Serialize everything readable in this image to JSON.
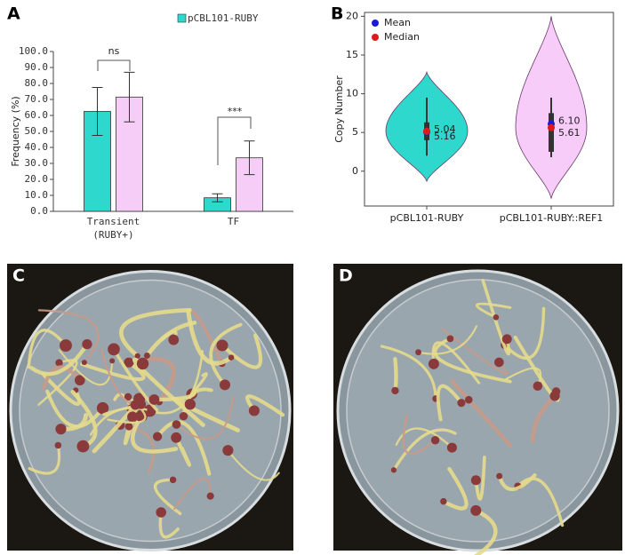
{
  "panel_labels": [
    "A",
    "B",
    "C",
    "D"
  ],
  "chart_data": [
    {
      "type": "bar",
      "ylabel": "Frequency (%)",
      "categories": [
        [
          "Transient",
          "(RUBY+)"
        ],
        [
          "TF"
        ]
      ],
      "series": [
        {
          "name": "pCBL101-RUBY",
          "color": "#2ed8cc",
          "values": [
            62.5,
            8.5
          ],
          "errors": [
            15,
            2.5
          ]
        },
        {
          "color": "#f6cdf6",
          "values": [
            71.5,
            33.5
          ],
          "errors": [
            15.5,
            10.5
          ]
        }
      ],
      "annotations": [
        "ns",
        "***"
      ],
      "ylim": [
        0,
        100
      ],
      "yticks": [
        {
          "value": 0,
          "label": "0.0"
        },
        {
          "value": 10,
          "label": "10.0"
        },
        {
          "value": 20,
          "label": "20.0"
        },
        {
          "value": 30,
          "label": "30.0"
        },
        {
          "value": 40,
          "label": "40.0"
        },
        {
          "value": 50,
          "label": "50.0"
        },
        {
          "value": 60,
          "label": "60.0"
        },
        {
          "value": 70,
          "label": "70.0"
        },
        {
          "value": 80,
          "label": "80.0"
        },
        {
          "value": 90,
          "label": "90.0"
        },
        {
          "value": 100,
          "label": "100.0"
        }
      ],
      "legend": "upper right"
    },
    {
      "type": "violin",
      "ylabel": "Copy Number",
      "categories": [
        "pCBL101-RUBY",
        "pCBL101-RUBY::REF1"
      ],
      "series": [
        {
          "color": "#2ed8cc",
          "range": [
            -1.3,
            12.8
          ],
          "whisker": [
            2,
            9.5
          ],
          "box": [
            4,
            6.3
          ]
        },
        {
          "color": "#f8ccf8",
          "range": [
            -3.5,
            20
          ],
          "whisker": [
            1.8,
            9.5
          ],
          "box": [
            2.5,
            7.5
          ]
        }
      ],
      "mean": {
        "name": "Mean",
        "color": "#1a1ad6",
        "values": [
          5.04,
          6.1
        ],
        "value_labels": [
          "5.04",
          "6.10"
        ]
      },
      "median": {
        "name": "Median",
        "color": "#dd1a1a",
        "values": [
          5.16,
          5.61
        ]
      },
      "ylim": [
        -4.5,
        20.5
      ],
      "yticks": [
        0,
        5,
        10,
        15,
        20
      ],
      "legend": "upper left"
    }
  ]
}
